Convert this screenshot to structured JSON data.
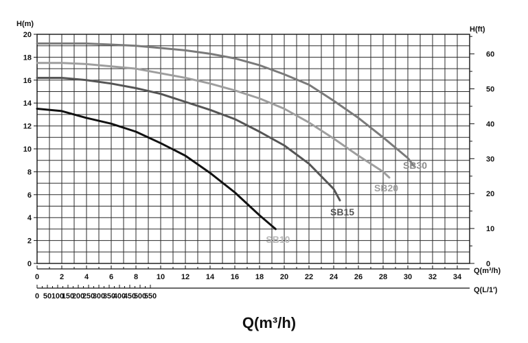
{
  "chart_data": {
    "type": "line",
    "y_left_label": "H(m)",
    "y_right_label": "H(ft)",
    "x_label_m3h": "Q(m³/h)",
    "x_label_lmin": "Q(L/1′)",
    "x_title": "Q(m³/h)",
    "x_m3h_ticks": [
      "0",
      "2",
      "4",
      "6",
      "8",
      "10",
      "12",
      "14",
      "16",
      "18",
      "20",
      "22",
      "24",
      "26",
      "28",
      "30",
      "32",
      "34"
    ],
    "x_lmin_ticks": [
      "0",
      "50",
      "100",
      "150",
      "200",
      "250",
      "300",
      "350",
      "400",
      "450",
      "500",
      "550"
    ],
    "y_m_ticks": [
      "0",
      "2",
      "4",
      "6",
      "8",
      "10",
      "12",
      "14",
      "16",
      "18",
      "20"
    ],
    "y_ft_ticks": [
      "0",
      "10",
      "20",
      "30",
      "40",
      "50",
      "60"
    ],
    "xlim": [
      0,
      35
    ],
    "ylim": [
      0,
      20
    ],
    "series": [
      {
        "name": "SB10",
        "color": "#111111",
        "label_color": "#b8b8b8",
        "x": [
          0,
          2,
          4,
          6,
          8,
          10,
          12,
          14,
          16,
          18,
          19.3
        ],
        "y": [
          13.5,
          13.3,
          12.7,
          12.2,
          11.5,
          10.5,
          9.4,
          7.9,
          6.2,
          4.2,
          3.0
        ]
      },
      {
        "name": "SB15",
        "color": "#555555",
        "label_color": "#555555",
        "x": [
          0,
          2,
          4,
          6,
          8,
          10,
          12,
          14,
          16,
          18,
          20,
          22,
          24,
          24.5
        ],
        "y": [
          16.2,
          16.2,
          16.0,
          15.7,
          15.3,
          14.8,
          14.1,
          13.4,
          12.6,
          11.5,
          10.3,
          8.7,
          6.5,
          5.5
        ]
      },
      {
        "name": "SB20",
        "color": "#9e9e9e",
        "label_color": "#9e9e9e",
        "x": [
          0,
          2,
          4,
          6,
          8,
          10,
          12,
          14,
          16,
          18,
          20,
          22,
          24,
          26,
          28,
          28.5
        ],
        "y": [
          17.5,
          17.5,
          17.4,
          17.2,
          17.0,
          16.6,
          16.2,
          15.7,
          15.1,
          14.4,
          13.5,
          12.3,
          10.9,
          9.4,
          8.0,
          7.5
        ]
      },
      {
        "name": "SB30",
        "color": "#7a7a7a",
        "label_color": "#8a8a8a",
        "x": [
          0,
          2,
          4,
          6,
          8,
          10,
          12,
          14,
          16,
          18,
          20,
          22,
          24,
          26,
          28,
          30,
          30.5
        ],
        "y": [
          19.2,
          19.2,
          19.2,
          19.1,
          19.0,
          18.8,
          18.6,
          18.3,
          17.9,
          17.3,
          16.5,
          15.6,
          14.2,
          12.7,
          11.0,
          9.2,
          8.5
        ]
      }
    ]
  }
}
